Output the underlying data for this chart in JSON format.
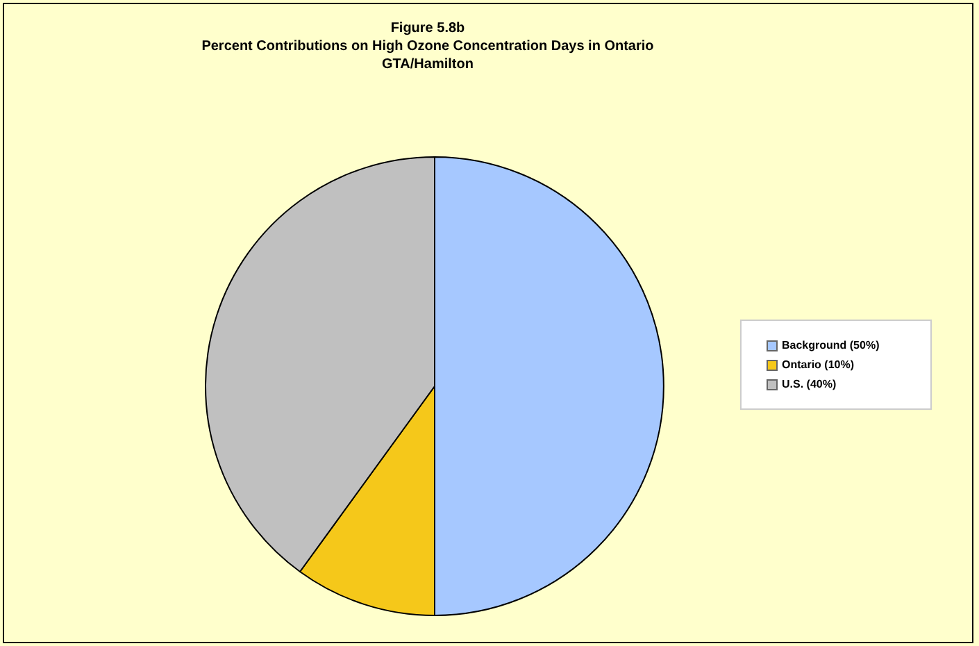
{
  "chart_data": {
    "type": "pie",
    "title": "Figure 5.8b",
    "subtitle": "Percent Contributions on High Ozone Concentration Days in Ontario\nGTA/Hamilton",
    "categories": [
      "Background (50%)",
      "Ontario (10%)",
      "U.S. (40%)"
    ],
    "values": [
      50,
      10,
      40
    ],
    "colors": [
      "#a6c8ff",
      "#f5c81a",
      "#c0c0c0"
    ],
    "legend": "right"
  }
}
